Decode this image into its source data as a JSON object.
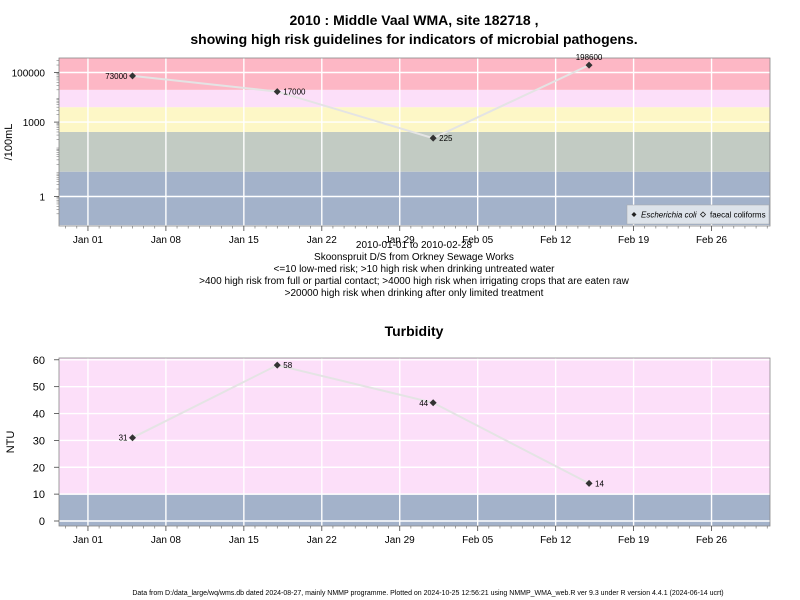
{
  "chart_data": [
    {
      "type": "line",
      "title": "2010 : Middle Vaal WMA, site 182718 ,",
      "subtitle": "showing high risk guidelines for indicators of microbial pathogens.",
      "ylabel": "/100mL",
      "y_scale": "log",
      "x": [
        "2010-01-05",
        "2010-01-18",
        "2010-02-01",
        "2010-02-15"
      ],
      "series": [
        {
          "name": "Escherichia coli",
          "values": [
            73000,
            17000,
            225,
            198600
          ],
          "labels": [
            "73000",
            "17000",
            "225",
            "198600"
          ]
        }
      ],
      "legend": [
        {
          "label": "Escherichia coli",
          "italic": true,
          "symbol": "filled-diamond"
        },
        {
          "label": "faecal coliforms",
          "italic": false,
          "symbol": "open-diamond"
        }
      ],
      "legend_position": "bottom-right",
      "x_ticks": [
        "Jan 01",
        "Jan 08",
        "Jan 15",
        "Jan 22",
        "Jan 29",
        "Feb 05",
        "Feb 12",
        "Feb 19",
        "Feb 26"
      ],
      "y_ticks": [
        "1",
        "1000",
        "100000"
      ],
      "risk_bands": [
        {
          "from": 0.07,
          "to": 10,
          "color": "#a3b2ca"
        },
        {
          "from": 10,
          "to": 400,
          "color": "#c2cbc3"
        },
        {
          "from": 400,
          "to": 4000,
          "color": "#fdf7c6"
        },
        {
          "from": 4000,
          "to": 20000,
          "color": "#fcdff9"
        },
        {
          "from": 20000,
          "to": 500000,
          "color": "#fdb7c5"
        }
      ],
      "caption": [
        "2010-01-01 to 2010-02-28",
        "Skoonspruit D/S from Orkney Sewage Works",
        "<=10 low-med risk; >10 high risk when drinking untreated water",
        ">400 high risk from full or partial contact; >4000 high risk when irrigating crops that are eaten raw",
        ">20000 high risk when drinking after only limited treatment"
      ]
    },
    {
      "type": "line",
      "title": "Turbidity",
      "ylabel": "NTU",
      "ylim": [
        -2,
        60
      ],
      "x": [
        "2010-01-05",
        "2010-01-18",
        "2010-02-01",
        "2010-02-15"
      ],
      "series": [
        {
          "name": "Turbidity",
          "values": [
            31,
            58,
            44,
            14
          ],
          "labels": [
            "31",
            "58",
            "44",
            "14"
          ]
        }
      ],
      "x_ticks": [
        "Jan 01",
        "Jan 08",
        "Jan 15",
        "Jan 22",
        "Jan 29",
        "Feb 05",
        "Feb 12",
        "Feb 19",
        "Feb 26"
      ],
      "y_ticks": [
        0,
        10,
        20,
        30,
        40,
        50,
        60
      ],
      "risk_bands": [
        {
          "from": -2,
          "to": 10,
          "color": "#a3b2ca"
        },
        {
          "from": 10,
          "to": 62,
          "color": "#fcdff9"
        }
      ]
    }
  ],
  "footer": "Data from D:/data_large/wq/wms.db dated 2024-08-27, mainly NMMP programme. Plotted on 2024-10-25 12:56:21 using NMMP_WMA_web.R ver 9.3 under R version 4.4.1 (2024-06-14 ucrt)"
}
